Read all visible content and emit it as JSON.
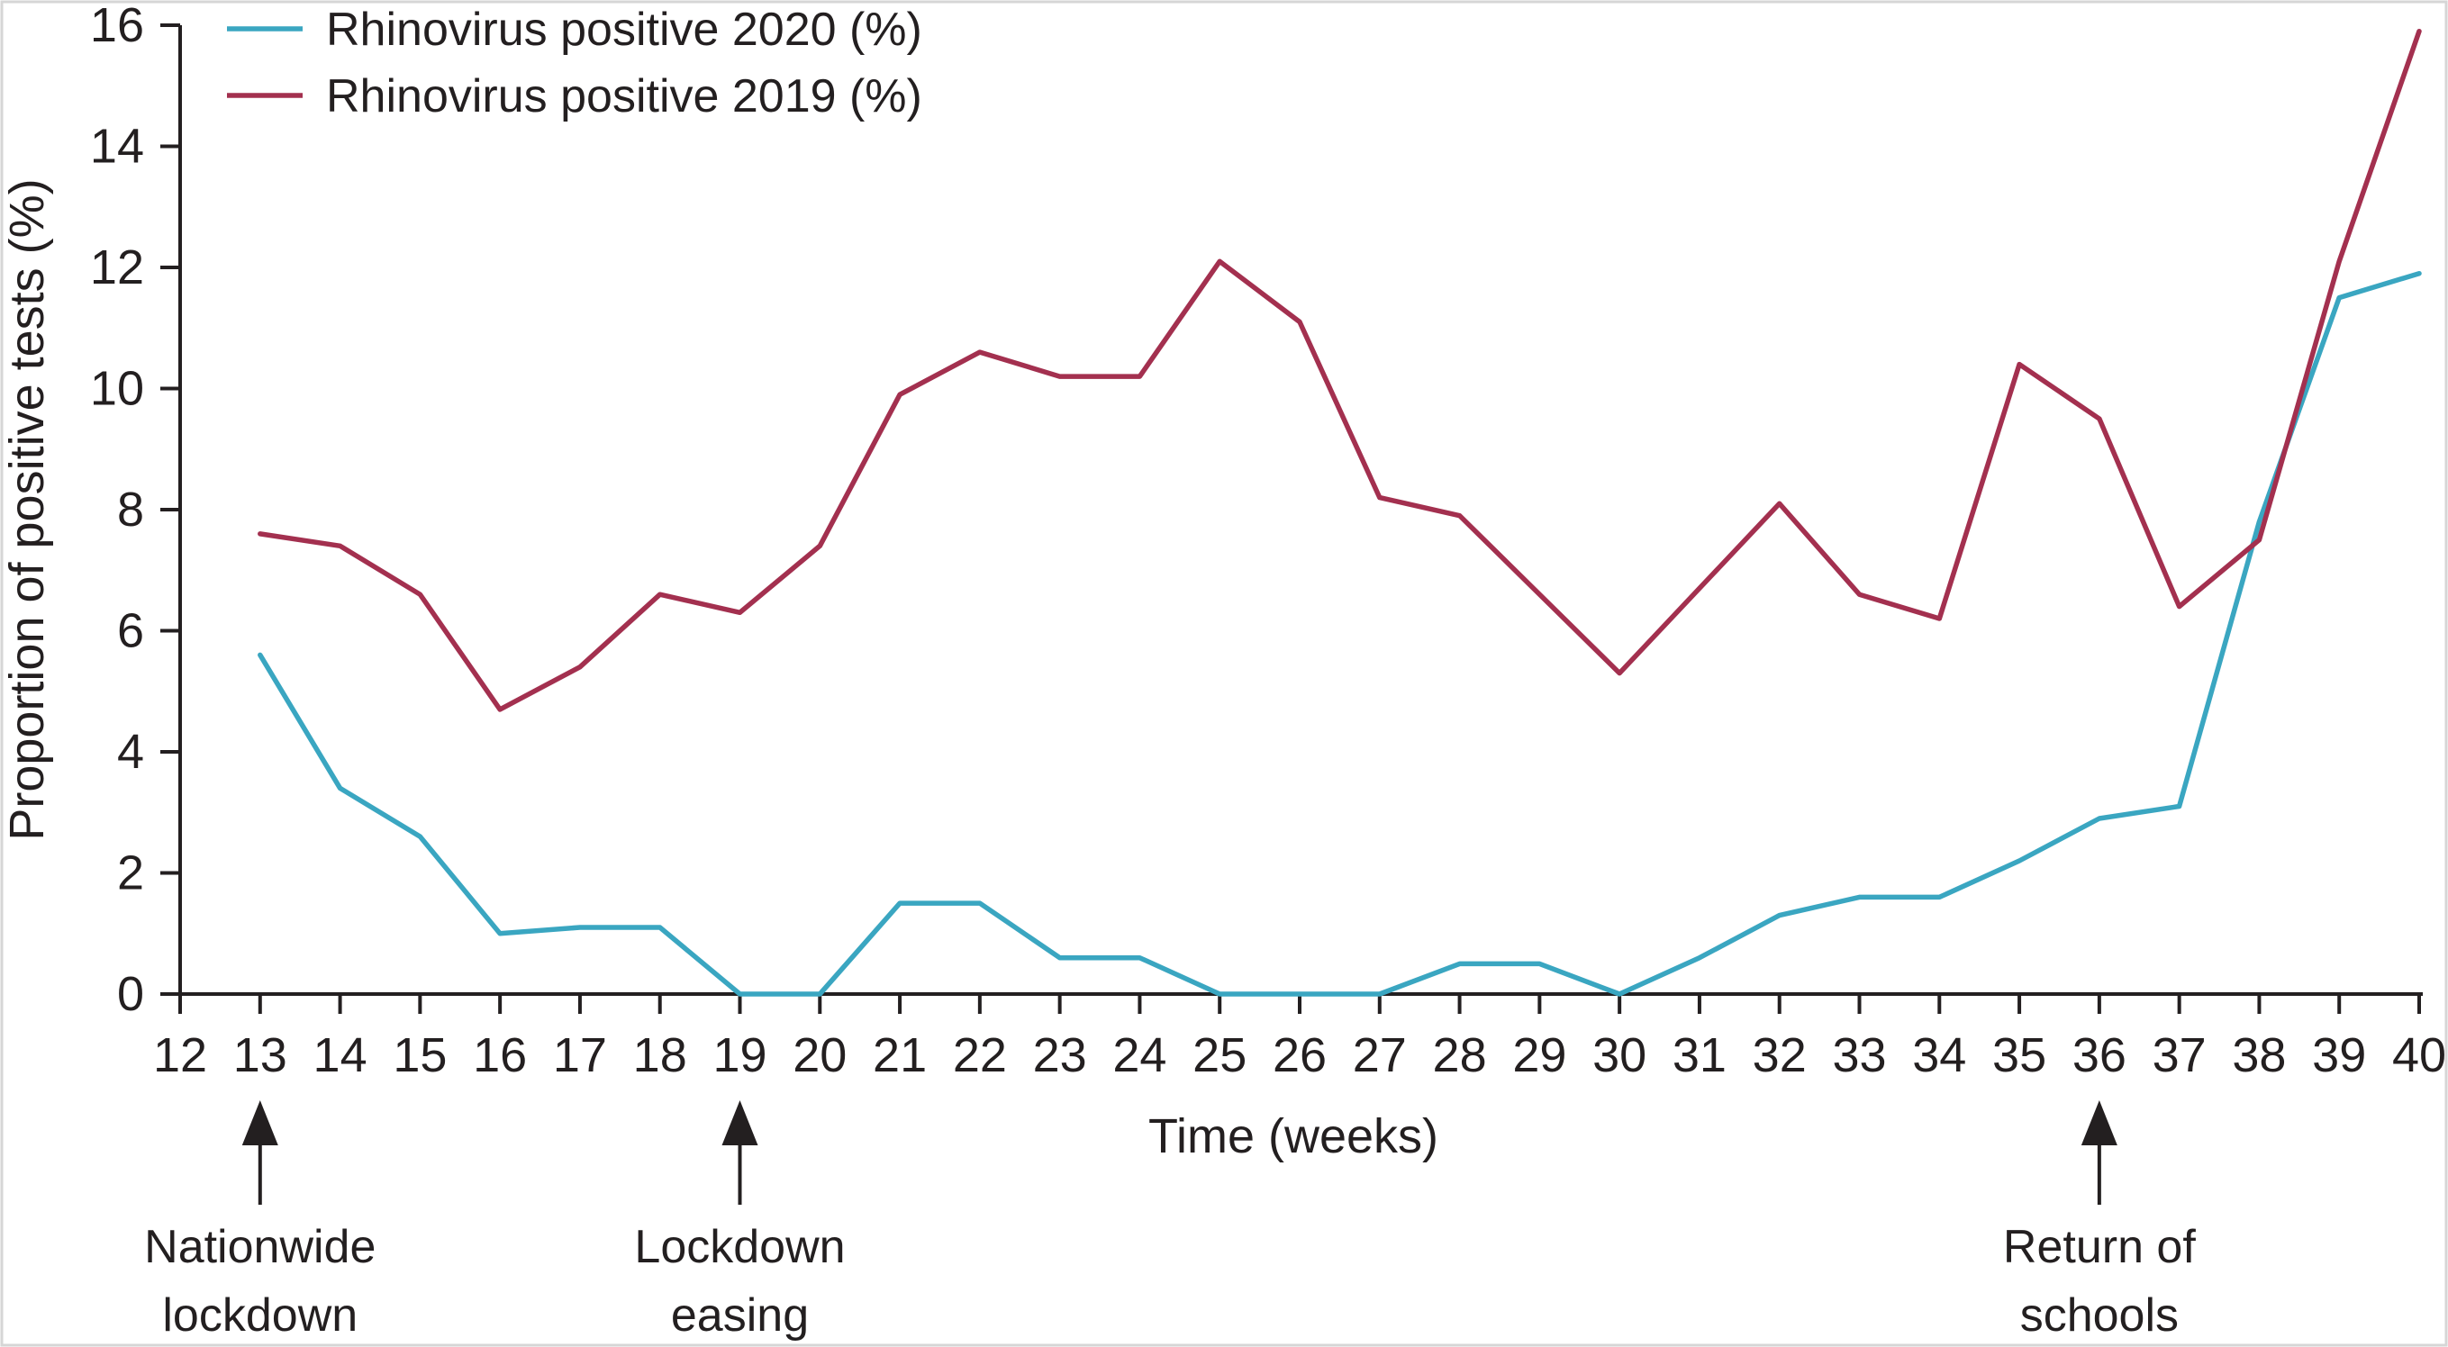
{
  "chart_data": {
    "type": "line",
    "title": "",
    "xlabel": "Time (weeks)",
    "ylabel": "Proportion of positive tests (%)",
    "xlim": [
      12,
      40
    ],
    "ylim": [
      0,
      16
    ],
    "x_ticks": [
      12,
      13,
      14,
      15,
      16,
      17,
      18,
      19,
      20,
      21,
      22,
      23,
      24,
      25,
      26,
      27,
      28,
      29,
      30,
      31,
      32,
      33,
      34,
      35,
      36,
      37,
      38,
      39,
      40
    ],
    "y_ticks": [
      0,
      2,
      4,
      6,
      8,
      10,
      12,
      14,
      16
    ],
    "grid": false,
    "legend_position": "top-left",
    "series": [
      {
        "name": "Rhinovirus positive 2020 (%)",
        "color": "#3aa6c1",
        "x": [
          13,
          14,
          15,
          16,
          17,
          18,
          19,
          20,
          21,
          22,
          23,
          24,
          25,
          26,
          27,
          28,
          29,
          30,
          31,
          32,
          33,
          34,
          35,
          36,
          37,
          38,
          39,
          40
        ],
        "values": [
          5.6,
          3.4,
          2.6,
          1.0,
          1.1,
          1.1,
          0.0,
          0.0,
          1.5,
          1.5,
          0.6,
          0.6,
          0.0,
          0.0,
          0.0,
          0.5,
          0.5,
          0.0,
          0.6,
          1.3,
          1.6,
          1.6,
          2.2,
          2.9,
          3.1,
          7.8,
          11.5,
          11.9
        ]
      },
      {
        "name": "Rhinovirus positive 2019 (%)",
        "color": "#a3304f",
        "x": [
          13,
          14,
          15,
          16,
          17,
          18,
          19,
          20,
          21,
          22,
          23,
          24,
          25,
          26,
          27,
          28,
          29,
          30,
          31,
          32,
          33,
          34,
          35,
          36,
          37,
          38,
          39,
          40
        ],
        "values": [
          7.6,
          7.4,
          6.6,
          4.7,
          5.4,
          6.6,
          6.3,
          7.4,
          9.9,
          10.6,
          10.2,
          10.2,
          12.1,
          11.1,
          8.2,
          7.9,
          6.6,
          5.3,
          6.7,
          8.1,
          6.6,
          6.2,
          10.4,
          9.5,
          6.4,
          7.5,
          12.1,
          15.9
        ]
      }
    ],
    "annotations": [
      {
        "x": 13,
        "lines": [
          "Nationwide",
          "lockdown"
        ]
      },
      {
        "x": 19,
        "lines": [
          "Lockdown",
          "easing"
        ]
      },
      {
        "x": 36,
        "lines": [
          "Return of",
          "schools"
        ]
      }
    ]
  }
}
